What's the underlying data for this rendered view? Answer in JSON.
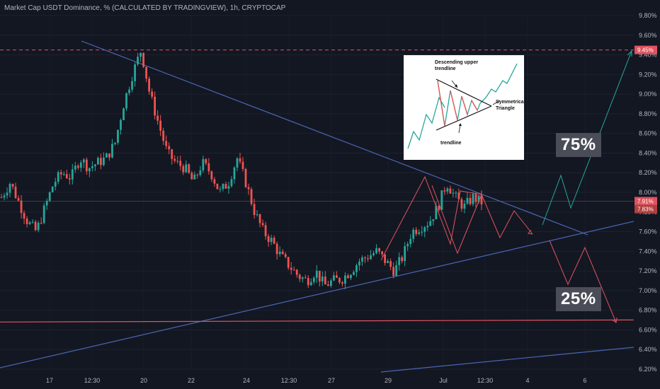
{
  "header": {
    "title": "Market Cap USDT Dominance, % (CALCULATED BY TRADINGVIEW), 1h, CRYPTOCAP"
  },
  "colors": {
    "background": "#131722",
    "up_candle": "#26a69a",
    "down_candle": "#ef5350",
    "trendline": "#4a66b3",
    "target_line": "#e0535f",
    "projection_up": "#26a69a",
    "projection_down": "#e0535f",
    "dashed_level": "#e0535f"
  },
  "badges": {
    "up_probability": "75%",
    "down_probability": "25%"
  },
  "price_tags": {
    "top_level": "9.45%",
    "current_up": "7.91%",
    "current_down": "7.83%"
  },
  "inset": {
    "label_descending": "Descending upper trendline",
    "label_symmetrical": "Symmetrical Triangle",
    "label_trendline": "trendline"
  },
  "chart_data": {
    "type": "candlestick",
    "title": "Market Cap USDT Dominance, % (CALCULATED BY TRADINGVIEW), 1h, CRYPTOCAP",
    "y_axis": {
      "ticks": [
        "9.80%",
        "9.60%",
        "9.40%",
        "9.20%",
        "9.00%",
        "8.80%",
        "8.60%",
        "8.40%",
        "8.20%",
        "8.00%",
        "7.80%",
        "7.60%",
        "7.40%",
        "7.20%",
        "7.00%",
        "6.80%",
        "6.60%",
        "6.40%",
        "6.20%"
      ],
      "range": [
        6.2,
        9.8
      ]
    },
    "x_axis": {
      "ticks": [
        "17",
        "12:30",
        "20",
        "22",
        "24",
        "12:30",
        "27",
        "29",
        "Jul",
        "12:30",
        "4",
        "6"
      ]
    },
    "close_path": [
      7.95,
      8.1,
      7.9,
      7.7,
      7.6,
      7.85,
      8.1,
      8.2,
      8.15,
      8.35,
      8.25,
      8.3,
      8.35,
      8.5,
      8.9,
      9.2,
      9.45,
      9.0,
      8.7,
      8.4,
      8.3,
      8.25,
      8.1,
      8.3,
      8.2,
      8.0,
      8.1,
      8.35,
      8.1,
      7.8,
      7.6,
      7.5,
      7.35,
      7.25,
      7.15,
      7.1,
      7.2,
      7.05,
      7.1,
      7.12,
      7.2,
      7.3,
      7.35,
      7.4,
      7.3,
      7.2,
      7.35,
      7.6,
      7.65,
      7.7,
      7.85,
      8.1,
      7.95,
      7.85,
      7.95,
      7.9
    ],
    "levels": {
      "dashed_high": 9.45,
      "support_target": 6.68
    },
    "projections": {
      "up_scenario_probability": "75%",
      "down_scenario_probability": "25%"
    }
  }
}
